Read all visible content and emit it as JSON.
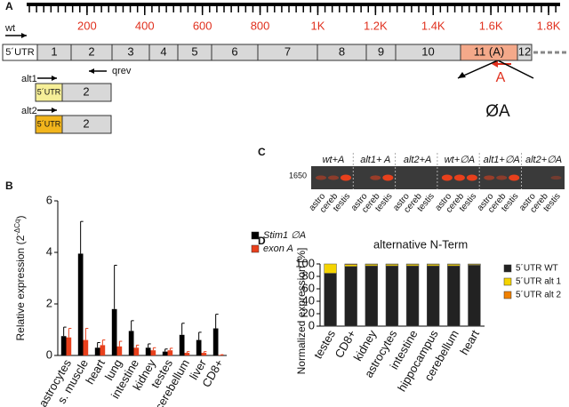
{
  "panel_letters": [
    "A",
    "B",
    "C",
    "D"
  ],
  "panel_a": {
    "ruler": {
      "lim": [
        0,
        1840
      ],
      "minor_step": 25,
      "ticks": [
        200,
        400,
        600,
        800,
        {
          "value": 1000,
          "label": "1K"
        },
        {
          "value": 1200,
          "label": "1.2K"
        },
        {
          "value": 1400,
          "label": "1.4K"
        },
        {
          "value": 1600,
          "label": "1.6K"
        },
        {
          "value": 1800,
          "label": "1.8K"
        }
      ]
    },
    "wt_label": "wt",
    "exons": [
      "5´UTR",
      "1",
      "2",
      "3",
      "4",
      "5",
      "6",
      "7",
      "8",
      "9",
      "10",
      "11 (A)",
      "12"
    ],
    "qrev_label": "qrev",
    "alt1": {
      "label": "alt1",
      "utr": "5´UTR",
      "exon": "2"
    },
    "alt2": {
      "label": "alt2",
      "utr": "5´UTR",
      "exon": "2"
    },
    "primer_label": "A",
    "splice_label": "ØA"
  },
  "panel_c": {
    "size_label": "1650",
    "groups": [
      {
        "label": "wt+A",
        "lanes": [
          "astro",
          "cereb",
          "testis"
        ]
      },
      {
        "label": "alt1+ A",
        "lanes": [
          "astro",
          "cereb",
          "testis"
        ]
      },
      {
        "label": "alt2+A",
        "lanes": [
          "astro",
          "cereb",
          "testis"
        ]
      },
      {
        "label": "wt+∅A",
        "lanes": [
          "astro",
          "cereb",
          "testis"
        ]
      },
      {
        "label": "alt1+∅A",
        "lanes": [
          "astro",
          "cereb",
          "testis"
        ]
      },
      {
        "label": "alt2+∅A",
        "lanes": [
          "astro",
          "cereb",
          "testis"
        ]
      }
    ]
  },
  "chart_data": [
    {
      "type": "bar",
      "ylabel": "Relative expression (2",
      "ylabel_exponent": "-ΔCq",
      "ylabel_end": ")",
      "categories": [
        "astrocytes",
        "s. muscle",
        "heart",
        "lung",
        "intestine",
        "kidney",
        "testes",
        "cerebellum",
        "liver",
        "CD8+"
      ],
      "series": [
        {
          "name": "Stim1 ∅A",
          "color": "#000000",
          "values": [
            0.75,
            3.95,
            0.3,
            1.8,
            0.95,
            0.3,
            0.15,
            0.8,
            0.6,
            1.05
          ],
          "errors": [
            0.35,
            1.25,
            0.2,
            1.7,
            0.4,
            0.15,
            0.1,
            0.45,
            0.3,
            0.55
          ]
        },
        {
          "name": "exon A",
          "color": "#e8401c",
          "values": [
            0.7,
            0.6,
            0.4,
            0.35,
            0.3,
            0.2,
            0.2,
            0.1,
            0.1,
            0.02
          ],
          "errors": [
            0.35,
            0.45,
            0.2,
            0.2,
            0.1,
            0.1,
            0.08,
            0.05,
            0.05,
            0.01
          ]
        }
      ],
      "ylim": [
        0,
        6
      ],
      "yticks": [
        0,
        2,
        4,
        6
      ]
    },
    {
      "type": "stacked_bar",
      "title": "alternative N-Term",
      "ylabel": "Normalized expression [%]",
      "categories": [
        "testes",
        "CD8+",
        "kidney",
        "astrocytes",
        "intestine",
        "hippocampus",
        "cerebellum",
        "heart"
      ],
      "series": [
        {
          "name": "5´UTR WT",
          "color": "#222222",
          "values": [
            85,
            96,
            97,
            97,
            97,
            97,
            97,
            98
          ]
        },
        {
          "name": "5´UTR alt 1",
          "color": "#f5d400",
          "values": [
            15,
            3,
            2.5,
            2.5,
            2.5,
            2.5,
            2.5,
            1.5
          ]
        },
        {
          "name": "5´UTR alt 2",
          "color": "#f08000",
          "values": [
            0,
            1,
            0.5,
            0.5,
            0.5,
            0.5,
            0.5,
            0.5
          ]
        }
      ],
      "ylim": [
        0,
        100
      ],
      "yticks": [
        0,
        20,
        40,
        60,
        80,
        100
      ]
    }
  ]
}
